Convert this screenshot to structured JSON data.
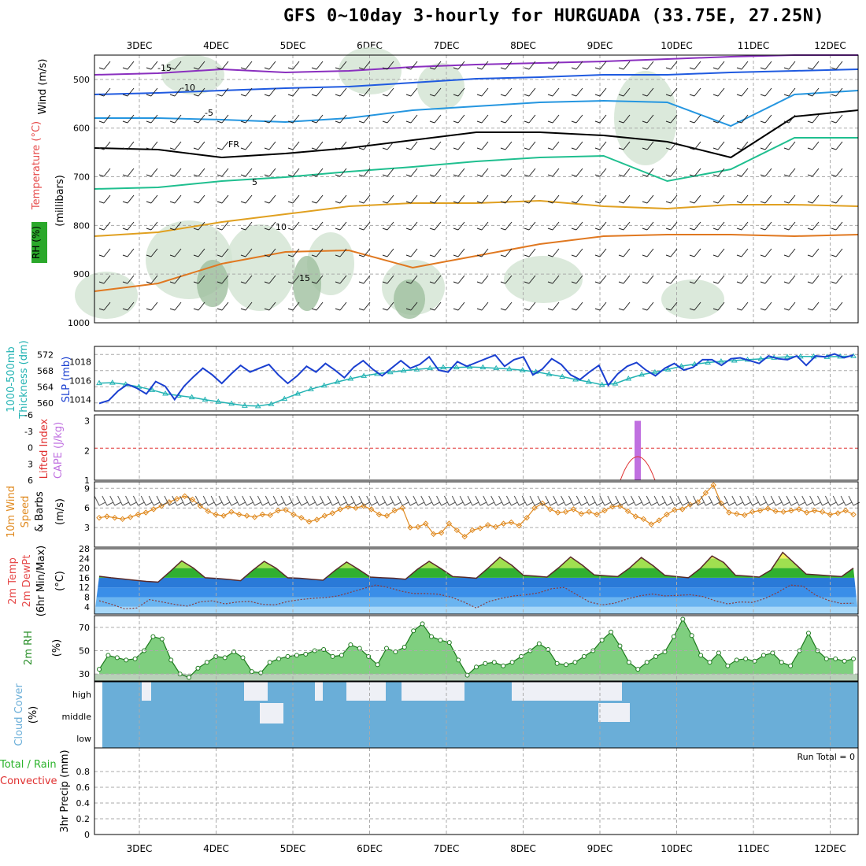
{
  "title": "GFS 0~10day 3-hourly for HURGUADA (33.75E, 27.25N)",
  "dates": [
    "3DEC",
    "4DEC",
    "5DEC",
    "6DEC",
    "7DEC",
    "8DEC",
    "9DEC",
    "10DEC",
    "11DEC",
    "12DEC"
  ],
  "colors": {
    "temp": "#e64b4b",
    "wind": "#1a1aa0",
    "rh": "#2a8f2a",
    "thickness": "#23b3b3",
    "slp": "#1a3fd0",
    "li": "#e03030",
    "cape": "#c070e0",
    "ws": "#e08a20",
    "cloud": "#6aaed8",
    "precip_total": "#2bb32b",
    "precip_conv": "#e03030"
  },
  "panels": {
    "upper": {
      "ylabel_wind": "Wind (m/s)",
      "ylabel_temp": "Temperature (°C)",
      "ylabel_rh": "RH (%)",
      "ylabel_p": "(millibars)",
      "yticks": [
        "500",
        "600",
        "700",
        "800",
        "900",
        "1000"
      ]
    },
    "thick": {
      "ylabel_thick": "1000-500mb",
      "ylabel_thick2": "Thickness (dm)",
      "ylabel_slp": "SLP (mb)",
      "yticks_thick": [
        "572",
        "568",
        "564",
        "560"
      ],
      "yticks_slp": [
        "1018",
        "1016",
        "1014"
      ]
    },
    "li": {
      "ylabel_li": "Lifted Index",
      "ylabel_cape": "CAPE (J/kg)",
      "yticks_li": [
        "-6",
        "-3",
        "0",
        "3",
        "6"
      ],
      "yticks_cape": [
        "3",
        "2",
        "1"
      ]
    },
    "wind10": {
      "ylabel1": "10m Wind",
      "ylabel2": "Speed",
      "ylabel3": "& Barbs",
      "ylabel_unit": "(m/s)",
      "yticks": [
        "9",
        "6",
        "3"
      ]
    },
    "temp2": {
      "ylabel1": "2m Temp",
      "ylabel2": "2m DewPt",
      "ylabel3": "(6hr Min/Max)",
      "ylabel_unit": "(°C)",
      "yticks": [
        "28",
        "24",
        "20",
        "16",
        "12",
        "8",
        "4"
      ]
    },
    "rh2": {
      "ylabel": "2m RH",
      "ylabel_unit": "(%)",
      "yticks": [
        "70",
        "50",
        "30"
      ]
    },
    "cloud": {
      "ylabel": "Cloud Cover",
      "ylabel_unit": "(%)",
      "levels": [
        "high",
        "middle",
        "low"
      ]
    },
    "precip": {
      "ylabel1": "Total / Rain",
      "ylabel2": "Convective",
      "ylabel3": "3hr Precip (mm)",
      "run_total": "Run Total = 0",
      "yticks": [
        "0.8",
        "0.6",
        "0.4",
        "0.2",
        "0"
      ]
    }
  },
  "chart_data": [
    {
      "type": "line",
      "title": "1000-500mb Thickness (dm) / SLP (mb)",
      "series": [
        {
          "name": "SLP (mb)",
          "values": [
            1013.6,
            1013.9,
            1014.9,
            1015.6,
            1015.2,
            1014.6,
            1015.9,
            1015.4,
            1014.0,
            1015.4,
            1016.4,
            1017.3,
            1016.6,
            1015.7,
            1016.7,
            1017.6,
            1016.9,
            1017.3,
            1017.7,
            1016.6,
            1015.7,
            1016.5,
            1017.5,
            1016.9,
            1017.8,
            1017.1,
            1016.3,
            1017.4,
            1018.1,
            1017.2,
            1016.5,
            1017.3,
            1018.1,
            1017.3,
            1017.7,
            1018.5,
            1017.1,
            1016.9,
            1018.0,
            1017.5,
            1017.9,
            1018.3,
            1018.7,
            1017.5,
            1018.2,
            1018.5,
            1016.6,
            1017.2,
            1018.3,
            1017.7,
            1016.6,
            1016.1,
            1016.9,
            1017.6,
            1015.5,
            1016.7,
            1017.5,
            1017.9,
            1017.1,
            1016.5,
            1017.3,
            1017.8,
            1017.1,
            1017.4,
            1018.2,
            1018.2,
            1017.6,
            1018.3,
            1018.4,
            1018.1,
            1017.8,
            1018.6,
            1018.3,
            1018.2,
            1018.6,
            1017.6,
            1018.6,
            1018.5,
            1018.8,
            1018.4,
            1018.7
          ]
        },
        {
          "name": "1000-500mb Thickness (dm)",
          "values": [
            564.9,
            565.0,
            564.6,
            564.0,
            563.2,
            562.3,
            561.8,
            561.4,
            560.8,
            560.3,
            559.8,
            559.3,
            559.2,
            559.7,
            561.0,
            562.3,
            563.4,
            564.3,
            565.2,
            566.0,
            566.7,
            567.2,
            567.6,
            568.0,
            568.3,
            568.6,
            568.8,
            568.8,
            568.9,
            568.8,
            568.6,
            568.4,
            568.1,
            567.7,
            567.1,
            566.5,
            565.8,
            565.2,
            564.5,
            564.8,
            566.0,
            567.0,
            567.6,
            568.3,
            569.1,
            569.6,
            570.0,
            570.3,
            570.5,
            570.7,
            570.9,
            571.2,
            571.4,
            571.5,
            571.5,
            571.4,
            571.5,
            571.6
          ]
        }
      ],
      "ylim_thickness": [
        558,
        574
      ],
      "ylim_slp": [
        1012.8,
        1019.6
      ]
    },
    {
      "type": "line",
      "title": "10m Wind Speed (m/s)",
      "series": [
        {
          "name": "10m Wind Speed",
          "values": [
            4.5,
            4.7,
            4.5,
            4.3,
            4.6,
            5.0,
            5.3,
            5.8,
            6.3,
            6.9,
            7.4,
            7.8,
            7.3,
            6.3,
            5.5,
            5.0,
            4.8,
            5.4,
            5.0,
            4.8,
            4.6,
            5.0,
            4.9,
            5.6,
            5.7,
            5.0,
            4.5,
            3.9,
            4.2,
            4.8,
            5.2,
            5.8,
            6.2,
            6.0,
            6.3,
            5.8,
            5.0,
            4.8,
            5.6,
            6.0,
            3.0,
            3.1,
            3.6,
            2.0,
            2.2,
            3.6,
            2.6,
            1.6,
            2.6,
            2.9,
            3.4,
            3.1,
            3.6,
            3.8,
            3.3,
            4.5,
            6.0,
            6.7,
            5.8,
            5.3,
            5.4,
            5.8,
            5.1,
            5.4,
            5.0,
            5.6,
            6.2,
            6.3,
            5.5,
            4.7,
            4.3,
            3.5,
            4.1,
            5.0,
            5.7,
            5.8,
            6.5,
            6.9,
            8.3,
            9.5,
            6.7,
            5.3,
            5.1,
            4.9,
            5.4,
            5.6,
            5.9,
            5.5,
            5.4,
            5.6,
            5.8,
            5.3,
            5.6,
            5.4,
            5.0,
            5.2,
            5.6,
            5.0
          ]
        }
      ],
      "ylim": [
        0,
        10
      ]
    },
    {
      "type": "line",
      "title": "2m RH (%)",
      "series": [
        {
          "name": "2m RH",
          "values": [
            34,
            46,
            44,
            42,
            43,
            50,
            62,
            60,
            42,
            30,
            27,
            35,
            40,
            45,
            44,
            49,
            44,
            32,
            31,
            40,
            43,
            45,
            46,
            47,
            50,
            51,
            45,
            46,
            55,
            52,
            45,
            38,
            52,
            49,
            53,
            67,
            73,
            62,
            59,
            57,
            42,
            29,
            36,
            39,
            40,
            37,
            40,
            45,
            50,
            56,
            51,
            39,
            38,
            40,
            45,
            50,
            59,
            66,
            54,
            40,
            34,
            40,
            45,
            49,
            62,
            77,
            63,
            46,
            40,
            48,
            37,
            42,
            43,
            41,
            46,
            48,
            40,
            37,
            50,
            65,
            50,
            43,
            43,
            41,
            43
          ]
        }
      ],
      "ylim": [
        24,
        80
      ]
    },
    {
      "type": "line",
      "title": "2m Temp / 2m DewPt (°C)",
      "series": [
        {
          "name": "2m Temp (°C)",
          "values": [
            16.6,
            16.0,
            15.5,
            15.0,
            14.5,
            14.2,
            18.5,
            23.0,
            20.0,
            16.0,
            15.7,
            15.3,
            14.8,
            19.0,
            22.8,
            20.0,
            16.0,
            15.8,
            15.4,
            15.0,
            19.0,
            22.5,
            19.5,
            16.3,
            16.0,
            15.8,
            15.4,
            19.5,
            22.8,
            19.8,
            16.5,
            16.2,
            15.8,
            20.0,
            24.5,
            21.2,
            17.0,
            16.7,
            16.3,
            20.2,
            24.6,
            21.2,
            17.2,
            16.8,
            16.5,
            20.0,
            24.4,
            21.0,
            17.0,
            16.5,
            16.0,
            19.8,
            25.0,
            22.3,
            17.0,
            16.7,
            16.3,
            19.2,
            26.5,
            22.0,
            17.5,
            17.2,
            16.8,
            16.5,
            20.0
          ]
        },
        {
          "name": "2m DewPt (°C)",
          "values": [
            6.5,
            5.0,
            3.2,
            3.5,
            7.0,
            6.0,
            5.0,
            4.3,
            6.0,
            6.5,
            5.2,
            6.0,
            6.2,
            5.0,
            4.8,
            6.2,
            7.0,
            7.5,
            7.8,
            8.5,
            10.0,
            11.5,
            13.0,
            12.0,
            10.5,
            9.5,
            9.5,
            9.2,
            8.0,
            6.0,
            3.5,
            6.2,
            7.5,
            8.5,
            9.0,
            9.8,
            11.5,
            12.0,
            9.0,
            6.0,
            4.8,
            5.5,
            7.2,
            8.5,
            9.3,
            8.5,
            8.7,
            9.0,
            8.3,
            6.5,
            5.2,
            6.0,
            5.8,
            7.5,
            10.0,
            13.0,
            12.5,
            8.8,
            6.7,
            5.4,
            5.5
          ]
        }
      ],
      "ylim": [
        1,
        28
      ]
    },
    {
      "type": "bar",
      "title": "CAPE (J/kg)",
      "categories": [
        "9DEC 12Z"
      ],
      "values": [
        3
      ],
      "ylim": [
        1,
        3.2
      ]
    },
    {
      "type": "bar",
      "title": "3hr Precip (mm)",
      "categories": [],
      "values": [],
      "ylim": [
        0,
        1
      ]
    }
  ]
}
